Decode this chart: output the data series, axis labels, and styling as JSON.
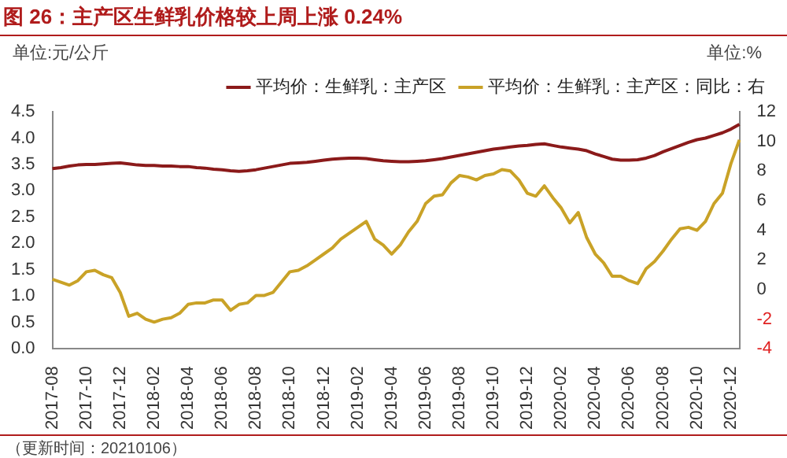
{
  "chart_data": {
    "type": "line",
    "title": "图 26：主产区生鲜乳价格较上周上涨 0.24%",
    "ylabel": "单位:元/公斤",
    "y2label": "单位:%",
    "annotations": [
      "（更新时间：20210106）"
    ],
    "categories": [
      "2017-08",
      null,
      null,
      null,
      "2017-10",
      null,
      null,
      null,
      "2017-12",
      null,
      null,
      null,
      "2018-02",
      null,
      null,
      null,
      "2018-04",
      null,
      null,
      null,
      "2018-06",
      null,
      null,
      null,
      "2018-08",
      null,
      null,
      null,
      "2018-10",
      null,
      null,
      null,
      "2018-12",
      null,
      null,
      null,
      "2019-02",
      null,
      null,
      null,
      "2019-04",
      null,
      null,
      null,
      "2019-06",
      null,
      null,
      null,
      "2019-08",
      null,
      null,
      null,
      "2019-10",
      null,
      null,
      null,
      "2019-12",
      null,
      null,
      null,
      "2020-02",
      null,
      null,
      null,
      "2020-04",
      null,
      null,
      null,
      "2020-06",
      null,
      null,
      null,
      "2020-08",
      null,
      null,
      null,
      "2020-10",
      null,
      null,
      null,
      "2020-12",
      null
    ],
    "series": [
      {
        "name": "平均价：生鲜乳：主产区",
        "color": "#8b1a1a",
        "values": [
          3.42,
          3.44,
          3.47,
          3.49,
          3.5,
          3.5,
          3.51,
          3.52,
          3.53,
          3.51,
          3.49,
          3.48,
          3.48,
          3.47,
          3.47,
          3.46,
          3.46,
          3.44,
          3.43,
          3.41,
          3.4,
          3.38,
          3.37,
          3.38,
          3.4,
          3.43,
          3.46,
          3.49,
          3.52,
          3.53,
          3.54,
          3.56,
          3.58,
          3.6,
          3.61,
          3.62,
          3.62,
          3.61,
          3.59,
          3.57,
          3.56,
          3.55,
          3.55,
          3.56,
          3.57,
          3.59,
          3.61,
          3.64,
          3.67,
          3.7,
          3.73,
          3.76,
          3.79,
          3.81,
          3.83,
          3.85,
          3.86,
          3.88,
          3.89,
          3.86,
          3.83,
          3.81,
          3.79,
          3.76,
          3.7,
          3.65,
          3.6,
          3.58,
          3.58,
          3.59,
          3.62,
          3.67,
          3.74,
          3.8,
          3.86,
          3.92,
          3.97,
          4.0,
          4.05,
          4.1,
          4.17,
          4.26
        ]
      },
      {
        "name": "平均价：生鲜乳：主产区：同比：右",
        "color": "#c9a227",
        "axis": "y2",
        "values": [
          0.7,
          0.5,
          0.3,
          0.6,
          1.2,
          1.3,
          1.0,
          0.8,
          -0.2,
          -1.8,
          -1.6,
          -2.0,
          -2.2,
          -2.0,
          -1.9,
          -1.6,
          -1.0,
          -0.9,
          -0.9,
          -0.7,
          -0.7,
          -1.4,
          -1.0,
          -0.9,
          -0.4,
          -0.4,
          -0.2,
          0.5,
          1.2,
          1.3,
          1.6,
          2.0,
          2.4,
          2.8,
          3.4,
          3.8,
          4.2,
          4.6,
          3.4,
          3.0,
          2.4,
          3.0,
          3.9,
          4.6,
          5.8,
          6.3,
          6.4,
          7.2,
          7.7,
          7.6,
          7.4,
          7.7,
          7.8,
          8.1,
          8.0,
          7.4,
          6.5,
          6.3,
          7.0,
          6.2,
          5.5,
          4.5,
          5.2,
          3.5,
          2.4,
          1.8,
          0.9,
          0.9,
          0.6,
          0.4,
          1.4,
          1.9,
          2.6,
          3.4,
          4.1,
          4.2,
          4.0,
          4.6,
          5.8,
          6.5,
          8.5,
          10.1
        ]
      }
    ],
    "ylim": [
      0,
      4.5
    ],
    "yticks": [
      {
        "value": 0,
        "label": "0.0"
      },
      0.5,
      {
        "value": 1,
        "label": "1.0"
      },
      1.5,
      {
        "value": 2,
        "label": "2.0"
      },
      2.5,
      {
        "value": 3,
        "label": "3.0"
      },
      3.5,
      {
        "value": 4,
        "label": "4.0"
      },
      4.5
    ],
    "y2lim": [
      -4,
      12
    ],
    "y2ticks": [
      -4,
      -2,
      0,
      2,
      4,
      6,
      8,
      10,
      12
    ],
    "grid": false,
    "legend": "top",
    "marker": "none",
    "line_style": "solid"
  }
}
